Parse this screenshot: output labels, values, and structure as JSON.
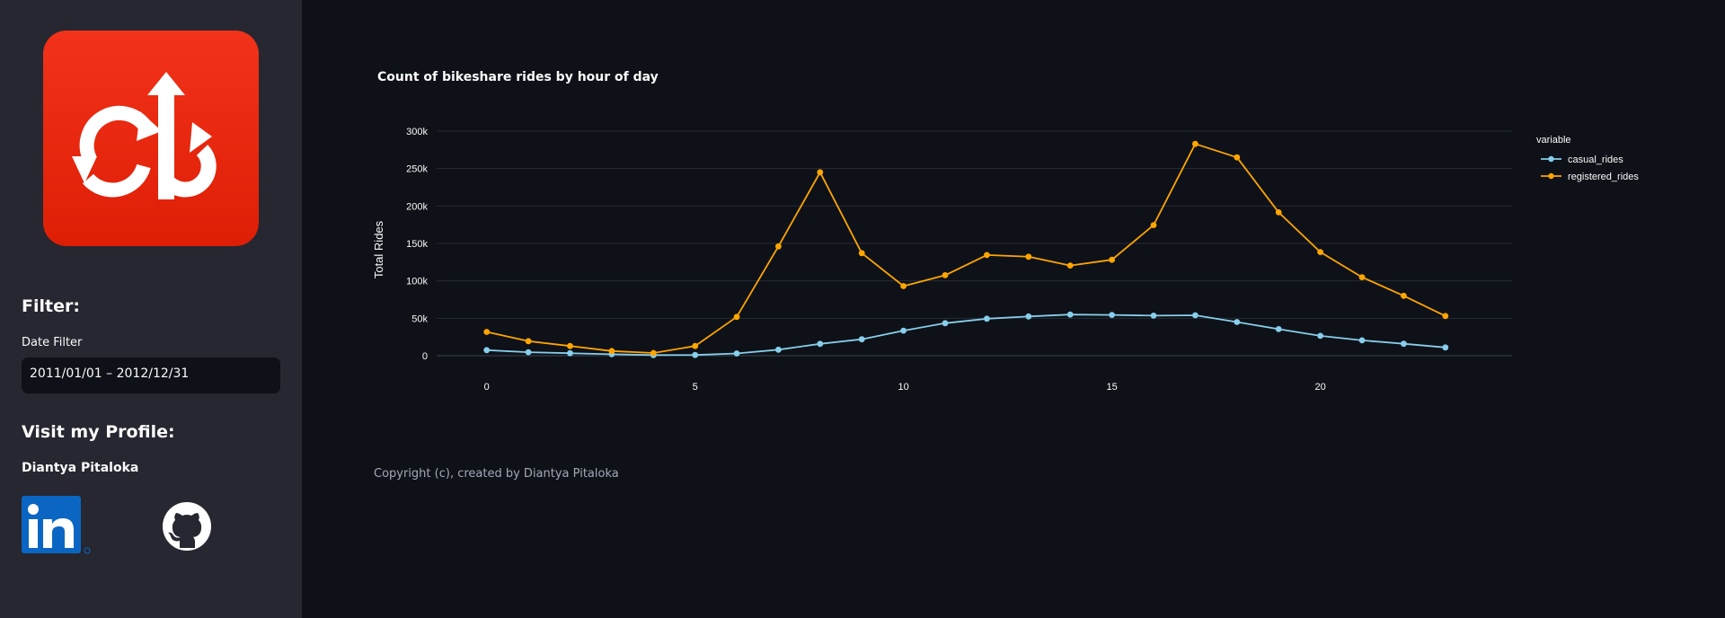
{
  "sidebar": {
    "logo_name": "bikeshare-logo",
    "filter_title": "Filter:",
    "date_filter_label": "Date Filter",
    "date_filter_value": "2011/01/01 – 2012/12/31",
    "profile_title": "Visit my Profile:",
    "author_name": "Diantya Pitaloka",
    "social_icons": [
      "linkedin-icon",
      "github-icon"
    ]
  },
  "main": {
    "copyright": "Copyright (c), created by Diantya Pitaloka"
  },
  "colors": {
    "background": "#0e1117",
    "sidebar": "#262730",
    "logo_red": "#e8270e",
    "casual": "#87ceeb",
    "registered": "#ffa500",
    "grid": "#283040"
  },
  "chart_data": {
    "type": "line",
    "title": "Count of bikeshare rides by hour of day",
    "xlabel": "",
    "ylabel": "Total Rides",
    "x": [
      0,
      1,
      2,
      3,
      4,
      5,
      6,
      7,
      8,
      9,
      10,
      11,
      12,
      13,
      14,
      15,
      16,
      17,
      18,
      19,
      20,
      21,
      22,
      23
    ],
    "xticks": [
      0,
      5,
      10,
      15,
      20
    ],
    "xlim": [
      -1.2,
      24.6
    ],
    "ylim": [
      0,
      300000
    ],
    "yticks": [
      0,
      50000,
      100000,
      150000,
      200000,
      250000,
      300000
    ],
    "yticklabels": [
      "0",
      "50k",
      "100k",
      "150k",
      "200k",
      "250k",
      "300k"
    ],
    "legend_title": "variable",
    "legend_position": "top-right",
    "series": [
      {
        "name": "casual_rides",
        "color": "#87ceeb",
        "values": [
          7400,
          4700,
          3400,
          1900,
          900,
          1000,
          3000,
          8000,
          15800,
          22000,
          33500,
          43500,
          49500,
          52500,
          55000,
          54500,
          53500,
          54000,
          45000,
          35500,
          26500,
          20500,
          16000,
          11000
        ]
      },
      {
        "name": "registered_rides",
        "color": "#ffa500",
        "values": [
          31800,
          19500,
          13000,
          6300,
          3600,
          13000,
          51800,
          146000,
          245000,
          137000,
          93000,
          107500,
          134500,
          132200,
          120500,
          128200,
          174500,
          283000,
          265000,
          191500,
          138500,
          104900,
          80000,
          53000
        ]
      }
    ]
  }
}
